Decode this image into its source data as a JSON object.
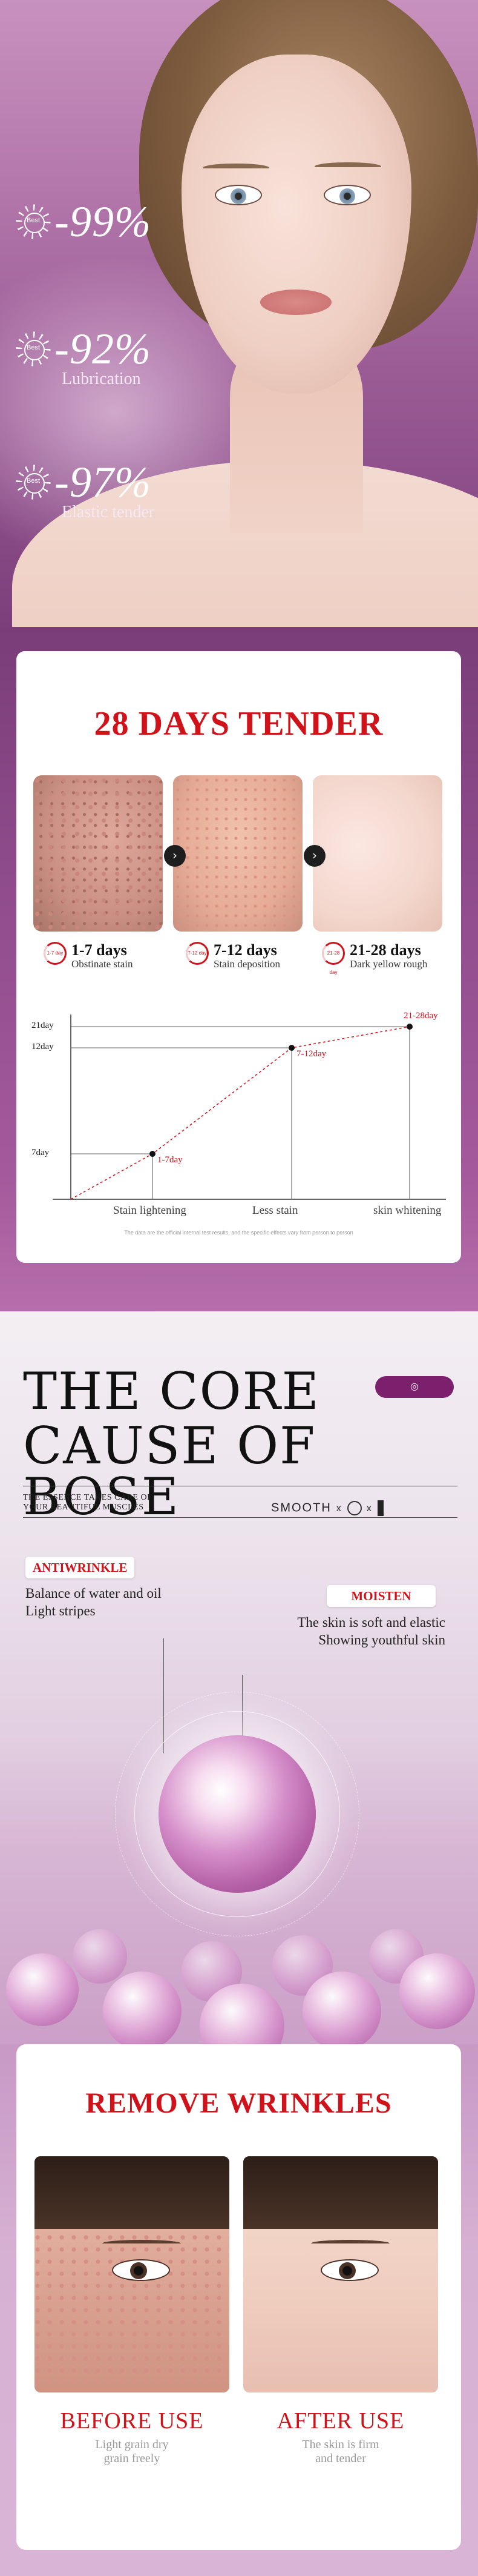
{
  "hero": {
    "stats": [
      {
        "badge": "Best",
        "value": "-99%",
        "label": ""
      },
      {
        "badge": "Best",
        "value": "-92%",
        "label": "Lubrication"
      },
      {
        "badge": "Best",
        "value": "-97%",
        "label": "Elastic tender"
      }
    ]
  },
  "tender": {
    "title": "28 DAYS TENDER",
    "arrow": "›",
    "periods": [
      {
        "icon": "1-7 day",
        "days": "1-7 days",
        "desc": "Obstinate stain"
      },
      {
        "icon": "7-12 day",
        "days": "7-12 days",
        "desc": "Stain deposition"
      },
      {
        "icon": "21-28 day",
        "days": "21-28 days",
        "desc": "Dark yellow rough"
      }
    ],
    "chart_data": {
      "type": "line",
      "y_ticks": [
        "21day",
        "12day",
        "7day"
      ],
      "categories": [
        "Stain lightening",
        "Less stain",
        "skin whitening"
      ],
      "points": [
        {
          "label": "1-7day",
          "y": 7
        },
        {
          "label": "7-12day",
          "y": 12
        },
        {
          "label": "21-28day",
          "y": 21
        }
      ]
    },
    "footnote": "The data are the official internal test results, and the specific effects vary from person to person"
  },
  "core": {
    "title_line1": "THE CORE",
    "title_line2": "CAUSE OF BOSE",
    "essence_line1": "THE ESSENCE TAKES CARE OF",
    "essence_line2": "YOUR BEAUTIFUL MUSCLES",
    "smooth": "SMOOTH",
    "x": "x",
    "anti_tag": "ANTIWRINKLE",
    "anti_line1": "Balance of water and oil",
    "anti_line2": "Light stripes",
    "moisten_tag": "MOISTEN",
    "moisten_line1": "The skin is soft and elastic",
    "moisten_line2": "Showing youthful skin"
  },
  "wrinkles": {
    "title": "REMOVE WRINKLES",
    "before_title": "BEFORE USE",
    "before_line1": "Light grain dry",
    "before_line2": "grain freely",
    "after_title": "AFTER USE",
    "after_line1": "The skin is firm",
    "after_line2": "and tender"
  },
  "colors": {
    "accent_red": "#d0121a",
    "brand_purple": "#7c1f6d"
  }
}
